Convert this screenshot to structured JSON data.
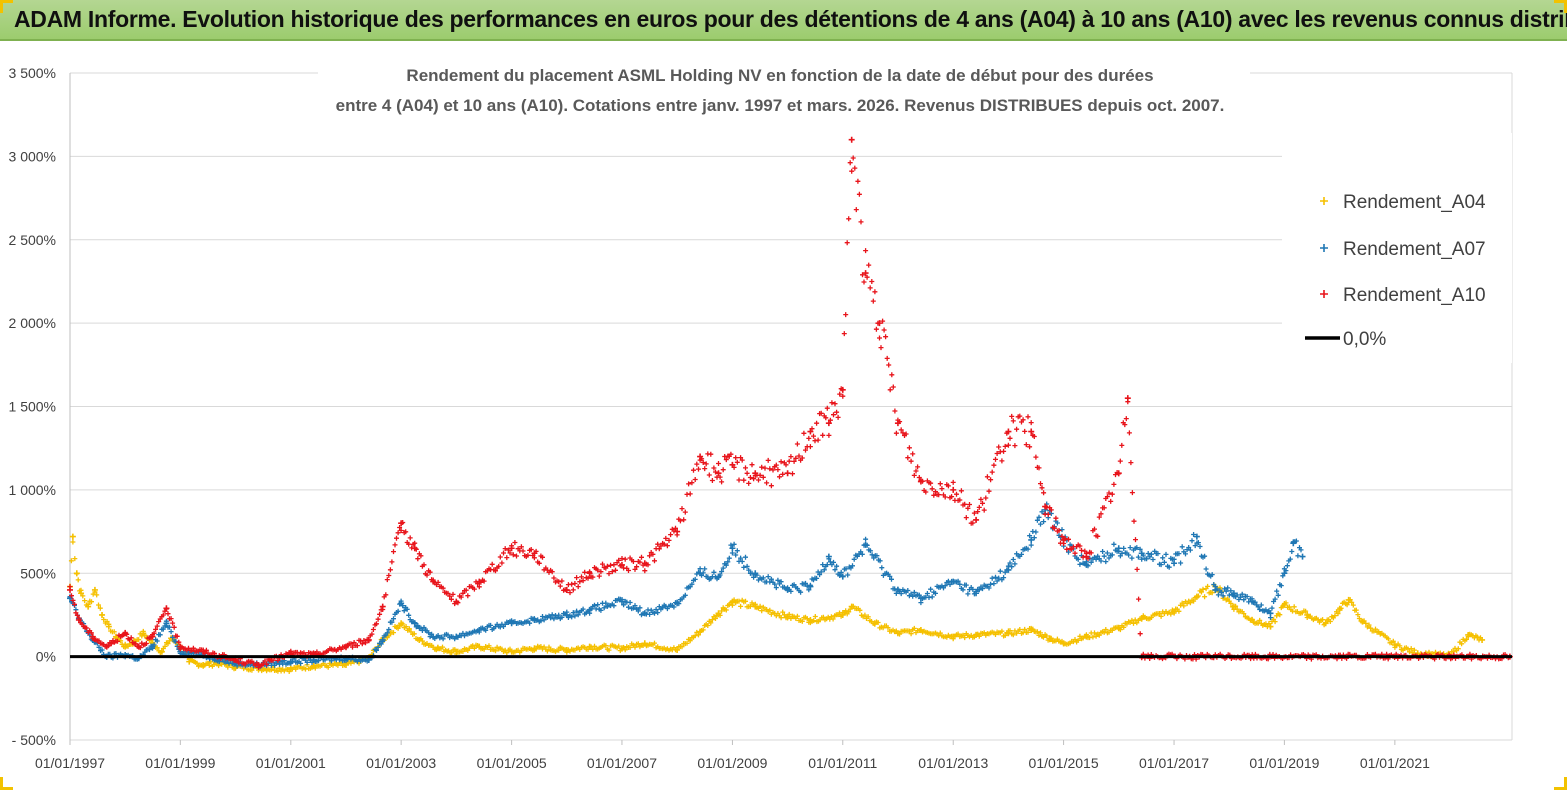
{
  "header": {
    "title": "ADAM Informe. Evolution historique des performances en euros pour des détentions de 4 ans (A04) à 10 ans (A10) avec les revenus connus distribués"
  },
  "colors": {
    "header_bg": "#9ccc6e",
    "A04": "#f5c000",
    "A07": "#1f77b4",
    "A10": "#e8141b",
    "zero_line": "#000000"
  },
  "chart_data": {
    "type": "scatter",
    "title_lines": [
      "Rendement du placement ASML Holding NV en fonction de la date de début pour des durées",
      "entre 4 (A04) et 10 ans (A10). Cotations entre janv. 1997 et mars. 2026. Revenus DISTRIBUES depuis oct. 2007."
    ],
    "x_range": [
      "1997-01-01",
      "2023-02-15"
    ],
    "x_tick_labels": [
      "01/01/1997",
      "01/01/1999",
      "01/01/2001",
      "01/01/2003",
      "01/01/2005",
      "01/01/2007",
      "01/01/2009",
      "01/01/2011",
      "01/01/2013",
      "01/01/2015",
      "01/01/2017",
      "01/01/2019",
      "01/01/2021"
    ],
    "y_range": [
      -500,
      3500
    ],
    "y_tick_labels": [
      "- 500%",
      "0%",
      "500%",
      "1 000%",
      "1 500%",
      "2 000%",
      "2 500%",
      "3 000%",
      "3 500%"
    ],
    "grid": "horizontal",
    "legend_position": "top-right",
    "marker": "+",
    "series": [
      {
        "name": "Rendement_A04",
        "color": "#f5c000",
        "points": [
          [
            "1997-01-01",
            420
          ],
          [
            "1997-01-20",
            720
          ],
          [
            "1997-02-15",
            500
          ],
          [
            "1997-03-15",
            380
          ],
          [
            "1997-05-01",
            300
          ],
          [
            "1997-06-15",
            400
          ],
          [
            "1997-08-01",
            250
          ],
          [
            "1997-09-15",
            180
          ],
          [
            "1997-11-01",
            120
          ],
          [
            "1998-01-01",
            60
          ],
          [
            "1998-03-01",
            90
          ],
          [
            "1998-05-01",
            140
          ],
          [
            "1998-07-01",
            80
          ],
          [
            "1998-09-01",
            30
          ],
          [
            "1998-11-01",
            110
          ],
          [
            "1999-01-01",
            60
          ],
          [
            "1999-03-01",
            -30
          ],
          [
            "1999-06-01",
            -50
          ],
          [
            "1999-09-01",
            -40
          ],
          [
            "2000-01-01",
            -60
          ],
          [
            "2000-06-01",
            -70
          ],
          [
            "2001-01-01",
            -75
          ],
          [
            "2001-06-01",
            -55
          ],
          [
            "2002-01-01",
            -50
          ],
          [
            "2002-06-01",
            -10
          ],
          [
            "2002-09-01",
            100
          ],
          [
            "2003-01-01",
            200
          ],
          [
            "2003-05-01",
            100
          ],
          [
            "2003-09-01",
            50
          ],
          [
            "2004-01-01",
            30
          ],
          [
            "2004-06-01",
            60
          ],
          [
            "2005-01-01",
            30
          ],
          [
            "2005-06-01",
            50
          ],
          [
            "2006-01-01",
            40
          ],
          [
            "2006-06-01",
            60
          ],
          [
            "2007-01-01",
            50
          ],
          [
            "2007-06-01",
            80
          ],
          [
            "2008-01-01",
            40
          ],
          [
            "2008-06-01",
            150
          ],
          [
            "2008-10-01",
            260
          ],
          [
            "2009-01-01",
            330
          ],
          [
            "2009-06-01",
            300
          ],
          [
            "2010-01-01",
            240
          ],
          [
            "2010-06-01",
            220
          ],
          [
            "2011-01-01",
            250
          ],
          [
            "2011-03-01",
            300
          ],
          [
            "2011-08-01",
            200
          ],
          [
            "2012-01-01",
            140
          ],
          [
            "2012-06-01",
            160
          ],
          [
            "2013-01-01",
            120
          ],
          [
            "2013-06-01",
            130
          ],
          [
            "2014-01-01",
            140
          ],
          [
            "2014-06-01",
            160
          ],
          [
            "2014-10-01",
            110
          ],
          [
            "2015-01-01",
            80
          ],
          [
            "2015-06-01",
            120
          ],
          [
            "2016-01-01",
            170
          ],
          [
            "2016-06-01",
            230
          ],
          [
            "2017-01-01",
            270
          ],
          [
            "2017-06-01",
            360
          ],
          [
            "2017-10-01",
            420
          ],
          [
            "2018-02-01",
            300
          ],
          [
            "2018-06-01",
            220
          ],
          [
            "2018-10-01",
            180
          ],
          [
            "2019-01-01",
            310
          ],
          [
            "2019-06-01",
            250
          ],
          [
            "2019-10-01",
            200
          ],
          [
            "2020-01-01",
            280
          ],
          [
            "2020-03-01",
            340
          ],
          [
            "2020-06-01",
            210
          ],
          [
            "2021-01-01",
            70
          ],
          [
            "2021-06-01",
            20
          ],
          [
            "2022-01-01",
            5
          ],
          [
            "2022-05-01",
            130
          ],
          [
            "2022-08-01",
            100
          ]
        ]
      },
      {
        "name": "Rendement_A07",
        "color": "#1f77b4",
        "points": [
          [
            "1997-01-01",
            350
          ],
          [
            "1997-03-01",
            230
          ],
          [
            "1997-06-01",
            100
          ],
          [
            "1997-09-01",
            0
          ],
          [
            "1998-01-01",
            10
          ],
          [
            "1998-04-01",
            -10
          ],
          [
            "1998-07-01",
            60
          ],
          [
            "1998-10-01",
            200
          ],
          [
            "1999-01-01",
            30
          ],
          [
            "1999-06-01",
            10
          ],
          [
            "2000-01-01",
            -40
          ],
          [
            "2000-06-01",
            -50
          ],
          [
            "2001-01-01",
            -30
          ],
          [
            "2001-06-01",
            -20
          ],
          [
            "2002-01-01",
            -10
          ],
          [
            "2002-06-01",
            -20
          ],
          [
            "2002-09-01",
            100
          ],
          [
            "2003-01-01",
            320
          ],
          [
            "2003-04-01",
            200
          ],
          [
            "2003-08-01",
            120
          ],
          [
            "2004-01-01",
            120
          ],
          [
            "2004-06-01",
            160
          ],
          [
            "2005-01-01",
            200
          ],
          [
            "2005-06-01",
            220
          ],
          [
            "2006-01-01",
            250
          ],
          [
            "2006-06-01",
            280
          ],
          [
            "2007-01-01",
            330
          ],
          [
            "2007-06-01",
            260
          ],
          [
            "2008-01-01",
            320
          ],
          [
            "2008-06-01",
            500
          ],
          [
            "2008-10-01",
            480
          ],
          [
            "2009-01-01",
            650
          ],
          [
            "2009-06-01",
            500
          ],
          [
            "2010-01-01",
            400
          ],
          [
            "2010-06-01",
            420
          ],
          [
            "2010-10-01",
            600
          ],
          [
            "2011-01-01",
            480
          ],
          [
            "2011-06-01",
            670
          ],
          [
            "2012-01-01",
            400
          ],
          [
            "2012-06-01",
            350
          ],
          [
            "2013-01-01",
            450
          ],
          [
            "2013-06-01",
            380
          ],
          [
            "2014-01-01",
            520
          ],
          [
            "2014-06-01",
            700
          ],
          [
            "2014-09-01",
            880
          ],
          [
            "2015-01-01",
            700
          ],
          [
            "2015-06-01",
            550
          ],
          [
            "2016-01-01",
            650
          ],
          [
            "2016-06-01",
            620
          ],
          [
            "2017-01-01",
            560
          ],
          [
            "2017-06-01",
            720
          ],
          [
            "2017-10-01",
            400
          ],
          [
            "2018-02-01",
            380
          ],
          [
            "2018-06-01",
            330
          ],
          [
            "2018-10-01",
            260
          ],
          [
            "2019-01-01",
            500
          ],
          [
            "2019-03-01",
            680
          ],
          [
            "2019-05-01",
            600
          ]
        ]
      },
      {
        "name": "Rendement_A10",
        "color": "#e8141b",
        "points": [
          [
            "1997-01-01",
            400
          ],
          [
            "1997-03-01",
            220
          ],
          [
            "1997-06-01",
            120
          ],
          [
            "1997-09-01",
            60
          ],
          [
            "1998-01-01",
            140
          ],
          [
            "1998-04-01",
            60
          ],
          [
            "1998-07-01",
            120
          ],
          [
            "1998-10-01",
            290
          ],
          [
            "1999-01-01",
            60
          ],
          [
            "1999-06-01",
            30
          ],
          [
            "2000-01-01",
            -20
          ],
          [
            "2000-06-01",
            -50
          ],
          [
            "2001-01-01",
            20
          ],
          [
            "2001-06-01",
            10
          ],
          [
            "2002-01-01",
            60
          ],
          [
            "2002-06-01",
            100
          ],
          [
            "2002-09-01",
            300
          ],
          [
            "2003-01-01",
            800
          ],
          [
            "2003-04-01",
            650
          ],
          [
            "2003-08-01",
            450
          ],
          [
            "2004-01-01",
            330
          ],
          [
            "2004-06-01",
            450
          ],
          [
            "2005-01-01",
            650
          ],
          [
            "2005-06-01",
            620
          ],
          [
            "2006-01-01",
            400
          ],
          [
            "2006-06-01",
            500
          ],
          [
            "2007-01-01",
            550
          ],
          [
            "2007-06-01",
            560
          ],
          [
            "2008-01-01",
            750
          ],
          [
            "2008-06-01",
            1200
          ],
          [
            "2008-10-01",
            1100
          ],
          [
            "2009-01-01",
            1150
          ],
          [
            "2009-06-01",
            1100
          ],
          [
            "2010-01-01",
            1100
          ],
          [
            "2010-06-01",
            1350
          ],
          [
            "2010-10-01",
            1400
          ],
          [
            "2011-01-01",
            1600
          ],
          [
            "2011-03-01",
            3100
          ],
          [
            "2011-06-01",
            2300
          ],
          [
            "2011-09-01",
            2000
          ],
          [
            "2012-01-01",
            1400
          ],
          [
            "2012-06-01",
            1050
          ],
          [
            "2013-01-01",
            1000
          ],
          [
            "2013-06-01",
            820
          ],
          [
            "2014-01-01",
            1350
          ],
          [
            "2014-06-01",
            1350
          ],
          [
            "2014-09-01",
            900
          ],
          [
            "2015-01-01",
            700
          ],
          [
            "2015-06-01",
            600
          ],
          [
            "2016-01-01",
            1100
          ],
          [
            "2016-03-01",
            1550
          ],
          [
            "2016-06-01",
            0
          ],
          [
            "2023-02-01",
            0
          ]
        ]
      },
      {
        "name": "0,0%",
        "color": "#000000",
        "style": "line",
        "points": [
          [
            "1997-01-01",
            0
          ],
          [
            "2023-02-15",
            0
          ]
        ]
      }
    ]
  }
}
